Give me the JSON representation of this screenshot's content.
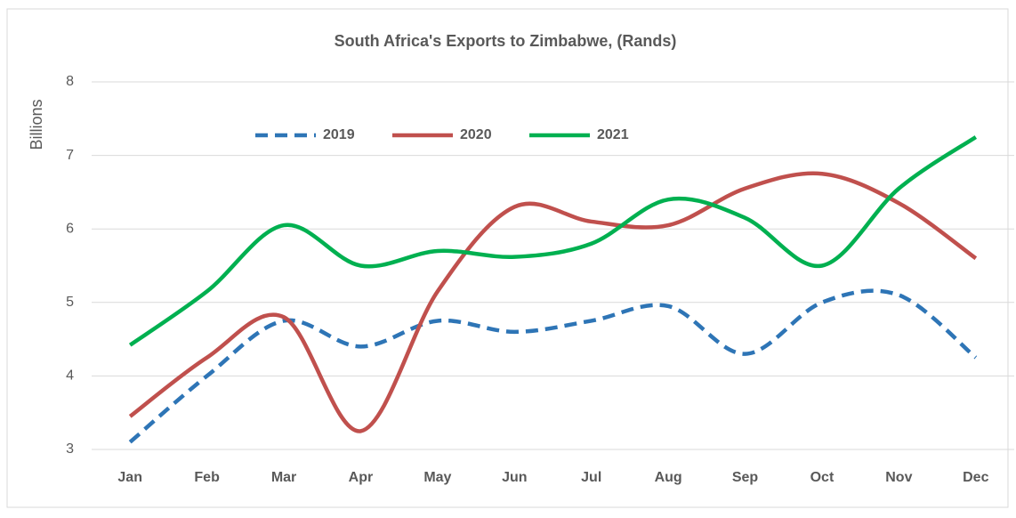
{
  "chart_data": {
    "type": "line",
    "title": "South Africa's Exports to Zimbabwe, (Rands)",
    "y_label": "Billions",
    "categories": [
      "Jan",
      "Feb",
      "Mar",
      "Apr",
      "May",
      "Jun",
      "Jul",
      "Aug",
      "Sep",
      "Oct",
      "Nov",
      "Dec"
    ],
    "series": [
      {
        "name": "2019",
        "color": "#2e75b6",
        "dashed": true,
        "values": [
          3.1,
          4.0,
          4.75,
          4.4,
          4.75,
          4.6,
          4.75,
          4.95,
          4.3,
          5.0,
          5.1,
          4.25
        ]
      },
      {
        "name": "2020",
        "color": "#c0504d",
        "dashed": false,
        "values": [
          3.45,
          4.25,
          4.8,
          3.25,
          5.15,
          6.3,
          6.1,
          6.05,
          6.55,
          6.75,
          6.35,
          5.6
        ]
      },
      {
        "name": "2021",
        "color": "#00b050",
        "dashed": false,
        "values": [
          4.42,
          5.15,
          6.05,
          5.5,
          5.7,
          5.62,
          5.8,
          6.4,
          6.15,
          5.5,
          6.55,
          7.25
        ]
      }
    ],
    "ylim": [
      3,
      8
    ],
    "yticks": [
      3,
      4,
      5,
      6,
      7,
      8
    ],
    "grid": true,
    "smooth": true,
    "legend": "top"
  }
}
